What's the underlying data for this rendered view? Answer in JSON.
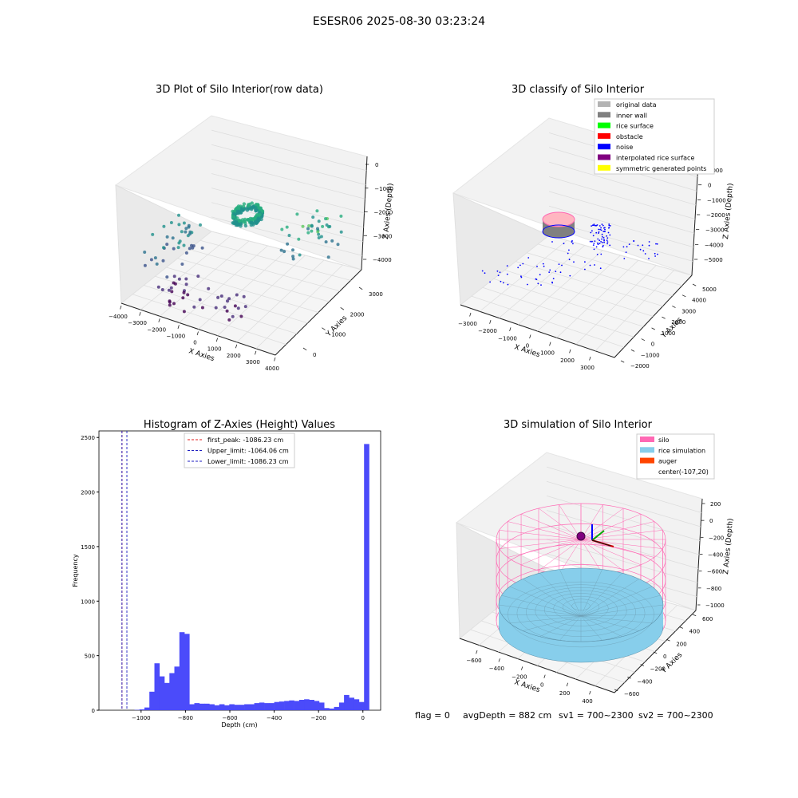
{
  "suptitle": "ESESR06 2025-08-30 03:23:24",
  "bottom_status": {
    "flag": "flag = 0",
    "avg_depth": "avgDepth = 882 cm",
    "sv1": "sv1 = 700~2300",
    "sv2": "sv2 = 700~2300"
  },
  "colors": {
    "hist_bar": "#4b4bfa",
    "first_peak": "#e01c1c",
    "limits": "#1c1cc0",
    "pane": "#f2f2f2",
    "silo": "#ff69b4",
    "rice": "#87ceeb",
    "auger": "#ff4500"
  },
  "chart_data": [
    {
      "type": "scatter",
      "panel": "top-left",
      "title": "3D Plot of Silo Interior(row data)",
      "xlabel": "X Axies",
      "ylabel": "Y Axies",
      "zlabel": "Z Axies (Depth)",
      "x_ticks": [
        "−4000",
        "−3000",
        "−2000",
        "−1000",
        "0",
        "1000",
        "2000",
        "3000",
        "4000"
      ],
      "y_ticks": [
        "0",
        "1000",
        "2000",
        "3000"
      ],
      "z_ticks": [
        "−4000",
        "−3000",
        "−2000",
        "−1000",
        "0"
      ],
      "xlim": [
        -4000,
        4000
      ],
      "ylim": [
        -1000,
        3800
      ],
      "zlim": [
        -4800,
        0
      ],
      "colormap": "viridis",
      "clusters": [
        {
          "name": "ring",
          "x": [
            -1400,
            200
          ],
          "y": [
            1800,
            2600
          ],
          "z": [
            -2000,
            -2300
          ]
        },
        {
          "name": "wall-left",
          "x": [
            -3500,
            -2000
          ],
          "y": [
            -500,
            1500
          ],
          "z": [
            -3600,
            -2200
          ]
        },
        {
          "name": "wall-right",
          "x": [
            1500,
            3500
          ],
          "y": [
            1500,
            3500
          ],
          "z": [
            -3000,
            -1500
          ]
        },
        {
          "name": "floor",
          "x": [
            -2500,
            1500
          ],
          "y": [
            -800,
            500
          ],
          "z": [
            -4600,
            -3800
          ]
        }
      ]
    },
    {
      "type": "scatter",
      "panel": "top-right",
      "title": "3D classify of Silo Interior",
      "xlabel": "X Axies",
      "ylabel": "Y Axies",
      "zlabel": "Z Axies (Depth)",
      "x_ticks": [
        "−3000",
        "−2000",
        "−1000",
        "0",
        "1000",
        "2000",
        "3000"
      ],
      "y_ticks": [
        "−2000",
        "−1000",
        "0",
        "1000",
        "2000",
        "3000",
        "4000",
        "5000"
      ],
      "z_ticks": [
        "−5000",
        "−4000",
        "−3000",
        "−2000",
        "−1000",
        "0",
        "1000"
      ],
      "legend": [
        {
          "label": "original data",
          "color": "#b3b3b3"
        },
        {
          "label": "inner wall",
          "color": "#808080"
        },
        {
          "label": "rice surface",
          "color": "#00ff00"
        },
        {
          "label": "obstacle",
          "color": "#ff0000"
        },
        {
          "label": "noise",
          "color": "#0000ff"
        },
        {
          "label": "interpolated rice surface",
          "color": "#800080"
        },
        {
          "label": "symmetric generated points",
          "color": "#ffff00"
        }
      ],
      "legend_loc": "upper right"
    },
    {
      "type": "bar",
      "panel": "bottom-left",
      "title": "Histogram of Z-Axies (Height) Values",
      "xlabel": "Depth (cm)",
      "ylabel": "Frequency",
      "xlim": [
        -1190,
        80
      ],
      "ylim": [
        0,
        2560
      ],
      "x_ticks": [
        -1000,
        -800,
        -600,
        -400,
        -200,
        0
      ],
      "x_tick_labels": [
        "−1000",
        "−800",
        "−600",
        "−400",
        "−200",
        "0"
      ],
      "y_ticks": [
        0,
        500,
        1000,
        1500,
        2000,
        2500
      ],
      "bin_width": 22.5,
      "bin_start": -1030,
      "values": [
        3,
        8,
        25,
        170,
        430,
        310,
        250,
        340,
        400,
        715,
        700,
        55,
        65,
        60,
        60,
        55,
        45,
        55,
        45,
        55,
        50,
        50,
        55,
        55,
        65,
        70,
        65,
        65,
        75,
        80,
        85,
        90,
        85,
        95,
        100,
        95,
        85,
        70,
        20,
        15,
        30,
        70,
        140,
        115,
        100,
        75,
        2440
      ],
      "vlines": [
        {
          "label": "first_peak: -1086.23 cm",
          "x": -1086.23,
          "color": "#e01c1c"
        },
        {
          "label": "Upper_limit: -1064.06 cm",
          "x": -1064.06,
          "color": "#1c1cc0"
        },
        {
          "label": "Lower_limit: -1086.23 cm",
          "x": -1086.23,
          "color": "#1c1cc0"
        }
      ],
      "legend_loc": "upper center"
    },
    {
      "type": "surface",
      "panel": "bottom-right",
      "title": "3D simulation of Silo Interior",
      "xlabel": "X Axies",
      "ylabel": "Y Axies",
      "zlabel": "Z Axies (Depth)",
      "x_ticks": [
        "−600",
        "−400",
        "−200",
        "0",
        "200",
        "400"
      ],
      "y_ticks": [
        "−600",
        "−400",
        "−200",
        "0",
        "200",
        "400",
        "600"
      ],
      "z_ticks": [
        "−1000",
        "−800",
        "−600",
        "−400",
        "−200",
        "0",
        "200"
      ],
      "legend": [
        {
          "label": "silo",
          "color": "#ff69b4"
        },
        {
          "label": "rice simulation",
          "color": "#87ceeb"
        },
        {
          "label": "auger",
          "color": "#ff4500"
        },
        {
          "label": "center(-107,20)",
          "color": ""
        }
      ],
      "legend_loc": "upper right"
    }
  ]
}
